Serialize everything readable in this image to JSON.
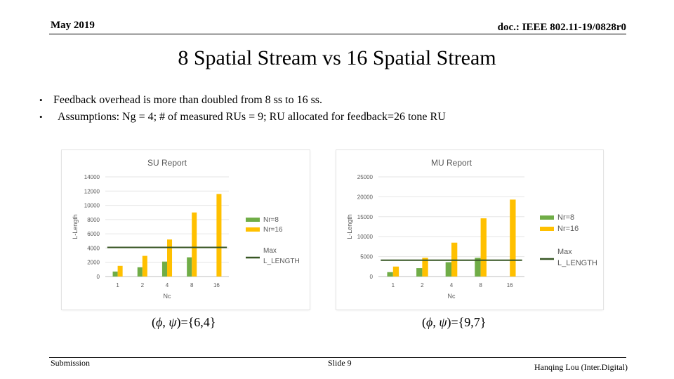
{
  "header": {
    "date": "May 2019",
    "doc_id": "doc.: IEEE 802.11-19/0828r0"
  },
  "title": "8 Spatial Stream vs 16 Spatial Stream",
  "bullets": [
    "Feedback overhead is more than doubled from 8 ss to 16 ss.",
    "Assumptions: Ng = 4; # of measured RUs = 9; RU allocated for feedback=26 tone RU"
  ],
  "colors": {
    "nr8": "#70AD47",
    "nr16": "#FFC000",
    "maxline": "#375623"
  },
  "chart_data": [
    {
      "type": "bar",
      "title": "SU Report",
      "xlabel": "Nc",
      "ylabel": "L-Length",
      "categories": [
        "1",
        "2",
        "4",
        "8",
        "16"
      ],
      "ylim": [
        0,
        14000
      ],
      "yticks": [
        0,
        2000,
        4000,
        6000,
        8000,
        10000,
        12000,
        14000
      ],
      "series": [
        {
          "name": "Nr=8",
          "values": [
            700,
            1300,
            2100,
            2700,
            null
          ]
        },
        {
          "name": "Nr=16",
          "values": [
            1500,
            2900,
            5200,
            9000,
            11600
          ]
        }
      ],
      "hline": {
        "name": "Max L_LENGTH",
        "value": 4095
      },
      "legend": [
        "Nr=8",
        "Nr=16",
        "Max L_LENGTH"
      ]
    },
    {
      "type": "bar",
      "title": "MU Report",
      "xlabel": "Nc",
      "ylabel": "L-Length",
      "categories": [
        "1",
        "2",
        "4",
        "8",
        "16"
      ],
      "ylim": [
        0,
        25000
      ],
      "yticks": [
        0,
        5000,
        10000,
        15000,
        20000,
        25000
      ],
      "series": [
        {
          "name": "Nr=8",
          "values": [
            1100,
            2100,
            3600,
            4700,
            null
          ]
        },
        {
          "name": "Nr=16",
          "values": [
            2500,
            4700,
            8500,
            14600,
            19300
          ]
        }
      ],
      "hline": {
        "name": "Max L_LENGTH",
        "value": 4095
      },
      "legend": [
        "Nr=8",
        "Nr=16",
        "Max L_LENGTH"
      ]
    }
  ],
  "formulas": {
    "left": {
      "prefix": "(",
      "phi": "ϕ",
      "comma": ", ",
      "psi": "ψ",
      "suffix": ")={6,4}"
    },
    "right": {
      "prefix": "(",
      "phi": "ϕ",
      "comma": ", ",
      "psi": "ψ",
      "suffix": ")={9,7}"
    }
  },
  "footer": {
    "left": "Submission",
    "center": "Slide 9",
    "right": "Hanqing Lou (Inter.Digital)"
  }
}
